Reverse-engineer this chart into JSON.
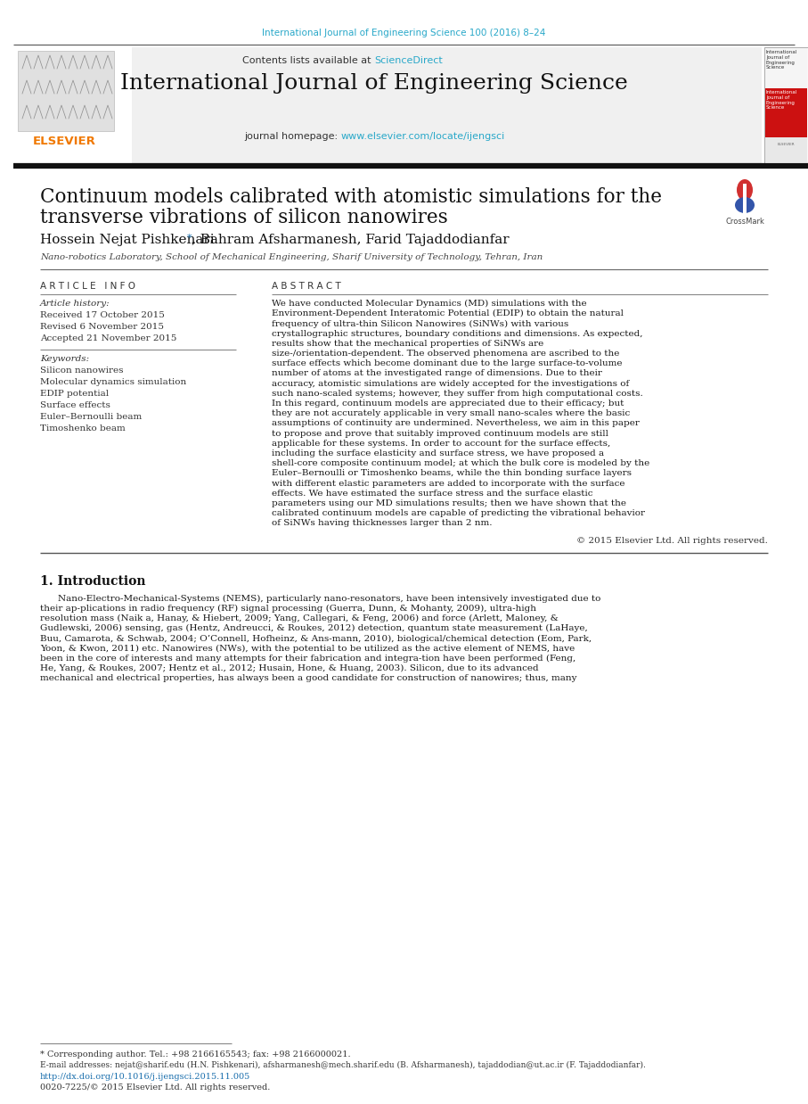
{
  "page_bg": "#ffffff",
  "top_citation": "International Journal of Engineering Science 100 (2016) 8–24",
  "top_citation_color": "#29a8c9",
  "header_title": "International Journal of Engineering Science",
  "header_contents": "Contents lists available at ",
  "header_sciencedirect": "ScienceDirect",
  "header_homepage_label": "journal homepage: ",
  "header_url": "www.elsevier.com/locate/ijengsci",
  "elsevier_text": "ELSEVIER",
  "elsevier_color": "#f07800",
  "paper_title_line1": "Continuum models calibrated with atomistic simulations for the",
  "paper_title_line2": "transverse vibrations of silicon nanowires",
  "authors": "Hossein Nejat Pishkenari",
  "authors_star": "*",
  "authors_rest": ", Bahram Afsharmanesh, Farid Tajaddodianfar",
  "affiliation": "Nano-robotics Laboratory, School of Mechanical Engineering, Sharif University of Technology, Tehran, Iran",
  "article_info_header": "A R T I C L E   I N F O",
  "article_history_label": "Article history:",
  "received": "Received 17 October 2015",
  "revised": "Revised 6 November 2015",
  "accepted": "Accepted 21 November 2015",
  "keywords_label": "Keywords:",
  "keywords": [
    "Silicon nanowires",
    "Molecular dynamics simulation",
    "EDIP potential",
    "Surface effects",
    "Euler–Bernoulli beam",
    "Timoshenko beam"
  ],
  "abstract_header": "A B S T R A C T",
  "abstract_text": "We have conducted Molecular Dynamics (MD) simulations with the Environment-Dependent Interatomic Potential (EDIP) to obtain the natural frequency of ultra-thin Silicon Nanowires (SiNWs) with various crystallographic structures, boundary conditions and dimensions. As expected, results show that the mechanical properties of SiNWs are size-/orientation-dependent. The observed phenomena are ascribed to the surface effects which become dominant due to the large surface-to-volume number of atoms at the investigated range of dimensions. Due to their accuracy, atomistic simulations are widely accepted for the investigations of such nano-scaled systems; however, they suffer from high computational costs. In this regard, continuum models are appreciated due to their efficacy; but they are not accurately applicable in very small nano-scales where the basic assumptions of continuity are undermined. Nevertheless, we aim in this paper to propose and prove that suitably improved continuum models are still applicable for these systems. In order to account for the surface effects, including the surface elasticity and surface stress, we have proposed a shell-core composite continuum model; at which the bulk core is modeled by the Euler–Bernoulli or Timoshenko beams, while the thin bonding surface layers with different elastic parameters are added to incorporate with the surface effects. We have estimated the surface stress and the surface elastic parameters using our MD simulations results; then we have shown that the calibrated continuum models are capable of predicting the vibrational behavior of SiNWs having thicknesses larger than 2 nm.",
  "copyright": "© 2015 Elsevier Ltd. All rights reserved.",
  "section1_header": "1. Introduction",
  "intro_para": "Nano-Electro-Mechanical-Systems (NEMS), particularly nano-resonators, have been intensively investigated due to their ap-plications in radio frequency (RF) signal processing (Guerra, Dunn, & Mohanty, 2009), ultra-high resolution mass (Naik a, Hanay, & Hiebert, 2009; Yang, Callegari, & Feng, 2006) and force (Arlett, Maloney, & Gudlewski, 2006) sensing, gas (Hentz, Andreucci, & Roukes, 2012) detection, quantum state measurement (LaHaye, Buu, Camarota, & Schwab, 2004; O’Connell, Hofheinz, & Ans-mann, 2010), biological/chemical detection (Eom, Park, Yoon, & Kwon, 2011) etc. Nanowires (NWs), with the potential to be utilized as the active element of NEMS, have been in the core of interests and many attempts for their fabrication and integra-tion have been performed (Feng, He, Yang, & Roukes, 2007; Hentz et al., 2012; Husain, Hone, & Huang, 2003). Silicon, due to its advanced mechanical and electrical properties, has always been a good candidate for construction of nanowires; thus, many",
  "footnote_line1": "* Corresponding author. Tel.: +98 2166165543; fax: +98 2166000021.",
  "footnote_line2": "E-mail addresses: nejat@sharif.edu (H.N. Pishkenari), afsharmanesh@mech.sharif.edu (B. Afsharmanesh), tajaddodian@ut.ac.ir (F. Tajaddodianfar).",
  "doi_line": "http://dx.doi.org/10.1016/j.ijengsci.2015.11.005",
  "issn_line": "0020-7225/© 2015 Elsevier Ltd. All rights reserved.",
  "link_color": "#1a6fad",
  "link_color2": "#29a8c9"
}
